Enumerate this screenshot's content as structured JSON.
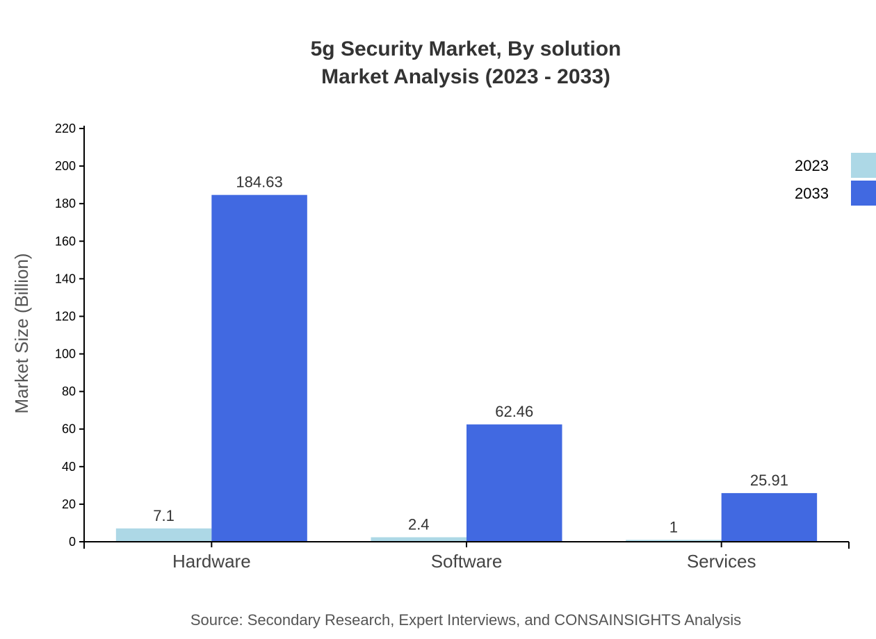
{
  "chart_data": {
    "type": "bar",
    "title": "5g Security Market, By solution",
    "subtitle": "Market Analysis (2023 - 2033)",
    "ylabel": "Market Size (Billion)",
    "xlabel": "",
    "ylim": [
      0,
      220
    ],
    "yticks": [
      0,
      20,
      40,
      60,
      80,
      100,
      120,
      140,
      160,
      180,
      200,
      220
    ],
    "categories": [
      "Hardware",
      "Software",
      "Services"
    ],
    "series": [
      {
        "name": "2023",
        "color": "#add8e6",
        "values": [
          7.1,
          2.4,
          1
        ]
      },
      {
        "name": "2033",
        "color": "#4169e1",
        "values": [
          184.63,
          62.46,
          25.91
        ]
      }
    ],
    "legend_position": "top-right",
    "grid": false,
    "source": "Source: Secondary Research, Expert Interviews, and CONSAINSIGHTS Analysis"
  }
}
